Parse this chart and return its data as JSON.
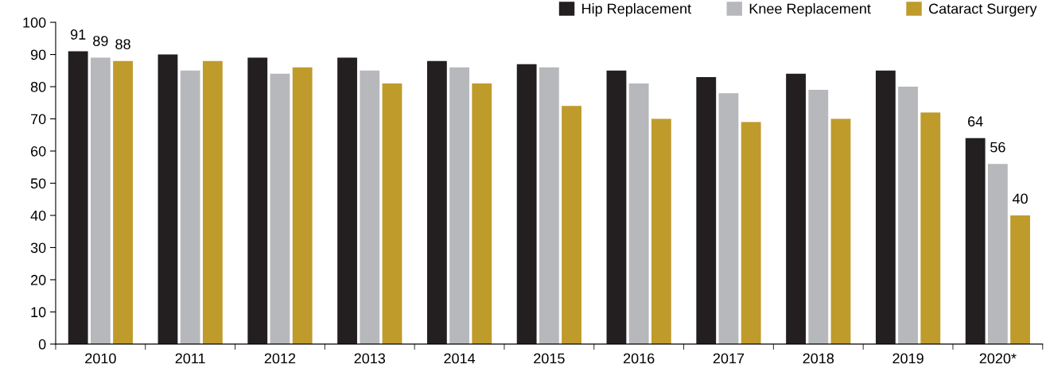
{
  "chart_data": {
    "type": "bar",
    "categories": [
      "2010",
      "2011",
      "2012",
      "2013",
      "2014",
      "2015",
      "2016",
      "2017",
      "2018",
      "2019",
      "2020*"
    ],
    "series": [
      {
        "name": "Hip Replacement",
        "color": "#231f20",
        "values": [
          91,
          90,
          89,
          89,
          88,
          87,
          85,
          83,
          84,
          85,
          64
        ],
        "value_labels": [
          "91",
          null,
          null,
          null,
          null,
          null,
          null,
          null,
          null,
          null,
          "64"
        ]
      },
      {
        "name": "Knee Replacement",
        "color": "#b7b8bb",
        "values": [
          89,
          85,
          84,
          85,
          86,
          86,
          81,
          78,
          79,
          80,
          56
        ],
        "value_labels": [
          "89",
          null,
          null,
          null,
          null,
          null,
          null,
          null,
          null,
          null,
          "56"
        ]
      },
      {
        "name": "Cataract Surgery",
        "color": "#bf9b2c",
        "values": [
          88,
          88,
          86,
          81,
          81,
          74,
          70,
          69,
          70,
          72,
          40
        ],
        "value_labels": [
          "88",
          null,
          null,
          null,
          null,
          null,
          null,
          null,
          null,
          null,
          "40"
        ]
      }
    ],
    "ylim": [
      0,
      100
    ],
    "yticks": [
      0,
      10,
      20,
      30,
      40,
      50,
      60,
      70,
      80,
      90,
      100
    ],
    "grid": false,
    "legend": "top right"
  }
}
